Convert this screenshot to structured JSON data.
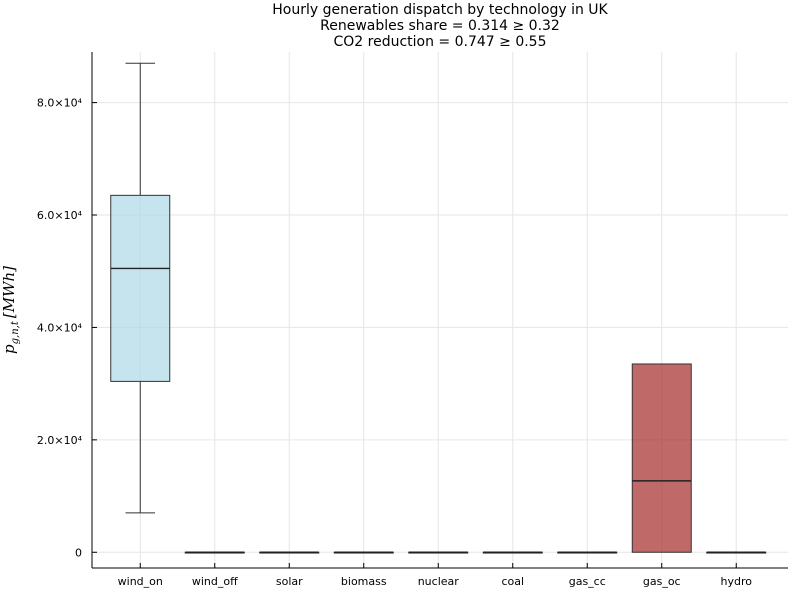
{
  "chart_data": {
    "type": "box",
    "title_lines": [
      "Hourly generation dispatch by technology in UK",
      "Renewables share = 0.314 ≥ 0.32",
      "CO2 reduction = 0.747 ≥ 0.55"
    ],
    "ylabel": "p_{g,n,t} [MWh]",
    "ylabel_parts": {
      "p": "p",
      "sub": "g,n,t",
      "unit": "[MWh]"
    },
    "ylim": [
      -2800,
      89000
    ],
    "yticks": [
      0,
      20000,
      40000,
      60000,
      80000
    ],
    "ytick_labels": [
      "0",
      "2.0×10⁴",
      "4.0×10⁴",
      "6.0×10⁴",
      "8.0×10⁴"
    ],
    "grid": true,
    "categories": [
      "wind_on",
      "wind_off",
      "solar",
      "biomass",
      "nuclear",
      "coal",
      "gas_cc",
      "gas_oc",
      "hydro"
    ],
    "boxes": [
      {
        "name": "wind_on",
        "min": 7000,
        "q1": 30400,
        "median": 50500,
        "q3": 63500,
        "max": 87000,
        "color": "#add8e6"
      },
      {
        "name": "wind_off",
        "min": 0,
        "q1": 0,
        "median": 0,
        "q3": 0,
        "max": 0,
        "color": "#add8e6"
      },
      {
        "name": "solar",
        "min": 0,
        "q1": 0,
        "median": 0,
        "q3": 0,
        "max": 0,
        "color": "#add8e6"
      },
      {
        "name": "biomass",
        "min": 0,
        "q1": 0,
        "median": 0,
        "q3": 0,
        "max": 0,
        "color": "#add8e6"
      },
      {
        "name": "nuclear",
        "min": 0,
        "q1": 0,
        "median": 0,
        "q3": 0,
        "max": 0,
        "color": "#add8e6"
      },
      {
        "name": "coal",
        "min": 0,
        "q1": 0,
        "median": 0,
        "q3": 0,
        "max": 0,
        "color": "#add8e6"
      },
      {
        "name": "gas_cc",
        "min": 0,
        "q1": 0,
        "median": 0,
        "q3": 0,
        "max": 0,
        "color": "#add8e6"
      },
      {
        "name": "gas_oc",
        "min": 0,
        "q1": 0,
        "median": 12700,
        "q3": 33500,
        "max": 33500,
        "color": "#a52a2a"
      },
      {
        "name": "hydro",
        "min": 0,
        "q1": 0,
        "median": 0,
        "q3": 0,
        "max": 0,
        "color": "#add8e6"
      }
    ]
  }
}
